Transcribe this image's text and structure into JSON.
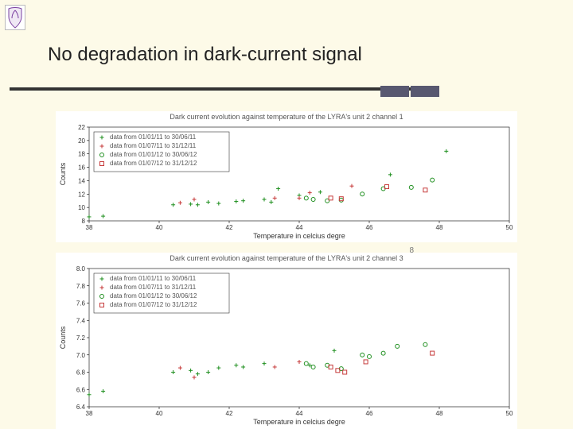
{
  "slide": {
    "title": "No degradation in dark-current signal",
    "page_number": "8"
  },
  "colors": {
    "page_bg": "#fdfae8",
    "rule": "#333333",
    "accent": "#585870",
    "series_green": "#1f8f1f",
    "series_red": "#c63a3a",
    "axis": "#000000"
  },
  "legend": {
    "items": [
      {
        "label": "data from 01/01/11 to 30/06/11",
        "marker": "plus",
        "color": "#1f8f1f"
      },
      {
        "label": "data from 01/07/11 to 31/12/11",
        "marker": "plus",
        "color": "#c63a3a"
      },
      {
        "label": "data from 01/01/12 to 30/06/12",
        "marker": "circle",
        "color": "#1f8f1f"
      },
      {
        "label": "data from 01/07/12 to 31/12/12",
        "marker": "square",
        "color": "#c63a3a"
      }
    ]
  },
  "chart_a": {
    "title": "Dark current evolution against temperature of the LYRA's unit 2 channel 1",
    "type": "scatter",
    "xlabel": "Temperature in celcius degre",
    "ylabel": "Counts",
    "xlim": [
      38,
      50
    ],
    "xtick_step": 2,
    "ylim": [
      8,
      22
    ],
    "ytick_step": 2,
    "background_color": "#ffffff",
    "legend_pos": "upper-left",
    "series": [
      {
        "name": "01/01/11-30/06/11",
        "marker": "plus",
        "color": "#1f8f1f",
        "pts": [
          [
            38.0,
            8.6
          ],
          [
            38.4,
            8.7
          ],
          [
            40.4,
            10.4
          ],
          [
            40.9,
            10.5
          ],
          [
            41.1,
            10.4
          ],
          [
            41.4,
            10.8
          ],
          [
            41.7,
            10.6
          ],
          [
            42.2,
            10.9
          ],
          [
            42.4,
            11.0
          ],
          [
            43.0,
            11.2
          ],
          [
            43.2,
            10.8
          ],
          [
            43.4,
            12.8
          ],
          [
            44.0,
            11.8
          ],
          [
            44.6,
            12.3
          ],
          [
            46.6,
            14.9
          ],
          [
            48.2,
            18.4
          ]
        ]
      },
      {
        "name": "01/07/11-31/12/11",
        "marker": "plus",
        "color": "#c63a3a",
        "pts": [
          [
            40.6,
            10.7
          ],
          [
            41.0,
            11.2
          ],
          [
            43.3,
            11.4
          ],
          [
            44.0,
            11.4
          ],
          [
            44.3,
            12.2
          ],
          [
            45.5,
            13.2
          ]
        ]
      },
      {
        "name": "01/01/12-30/06/12",
        "marker": "circle",
        "color": "#1f8f1f",
        "pts": [
          [
            44.2,
            11.4
          ],
          [
            44.4,
            11.2
          ],
          [
            44.8,
            11.0
          ],
          [
            45.2,
            11.1
          ],
          [
            45.8,
            12.0
          ],
          [
            46.4,
            12.8
          ],
          [
            47.2,
            13.0
          ],
          [
            47.8,
            14.1
          ]
        ]
      },
      {
        "name": "01/07/12-31/12/12",
        "marker": "square",
        "color": "#c63a3a",
        "pts": [
          [
            44.9,
            11.4
          ],
          [
            45.2,
            11.3
          ],
          [
            46.5,
            13.1
          ],
          [
            47.6,
            12.6
          ]
        ]
      }
    ]
  },
  "chart_b": {
    "title": "Dark current evolution against temperature of the LYRA's unit 2 channel 3",
    "type": "scatter",
    "xlabel": "Temperature in celcius degre",
    "ylabel": "Counts",
    "xlim": [
      38,
      50
    ],
    "xtick_step": 2,
    "ylim": [
      6.4,
      8.0
    ],
    "ytick_step": 0.2,
    "background_color": "#ffffff",
    "legend_pos": "upper-left",
    "series": [
      {
        "name": "01/01/11-30/06/11",
        "marker": "plus",
        "color": "#1f8f1f",
        "pts": [
          [
            38.0,
            6.54
          ],
          [
            38.4,
            6.58
          ],
          [
            40.4,
            6.8
          ],
          [
            40.9,
            6.82
          ],
          [
            41.1,
            6.78
          ],
          [
            41.4,
            6.8
          ],
          [
            41.7,
            6.85
          ],
          [
            42.2,
            6.88
          ],
          [
            42.4,
            6.86
          ],
          [
            43.0,
            6.9
          ],
          [
            44.3,
            6.88
          ],
          [
            45.0,
            7.05
          ]
        ]
      },
      {
        "name": "01/07/11-31/12/11",
        "marker": "plus",
        "color": "#c63a3a",
        "pts": [
          [
            40.6,
            6.85
          ],
          [
            41.0,
            6.74
          ],
          [
            43.3,
            6.86
          ],
          [
            44.0,
            6.92
          ]
        ]
      },
      {
        "name": "01/01/12-30/06/12",
        "marker": "circle",
        "color": "#1f8f1f",
        "pts": [
          [
            44.2,
            6.9
          ],
          [
            44.4,
            6.86
          ],
          [
            44.8,
            6.88
          ],
          [
            45.2,
            6.84
          ],
          [
            45.8,
            7.0
          ],
          [
            46.0,
            6.98
          ],
          [
            46.4,
            7.02
          ],
          [
            46.8,
            7.1
          ],
          [
            47.6,
            7.12
          ]
        ]
      },
      {
        "name": "01/07/12-31/12/12",
        "marker": "square",
        "color": "#c63a3a",
        "pts": [
          [
            44.9,
            6.86
          ],
          [
            45.1,
            6.82
          ],
          [
            45.3,
            6.8
          ],
          [
            45.9,
            6.92
          ],
          [
            47.8,
            7.02
          ]
        ]
      }
    ]
  }
}
